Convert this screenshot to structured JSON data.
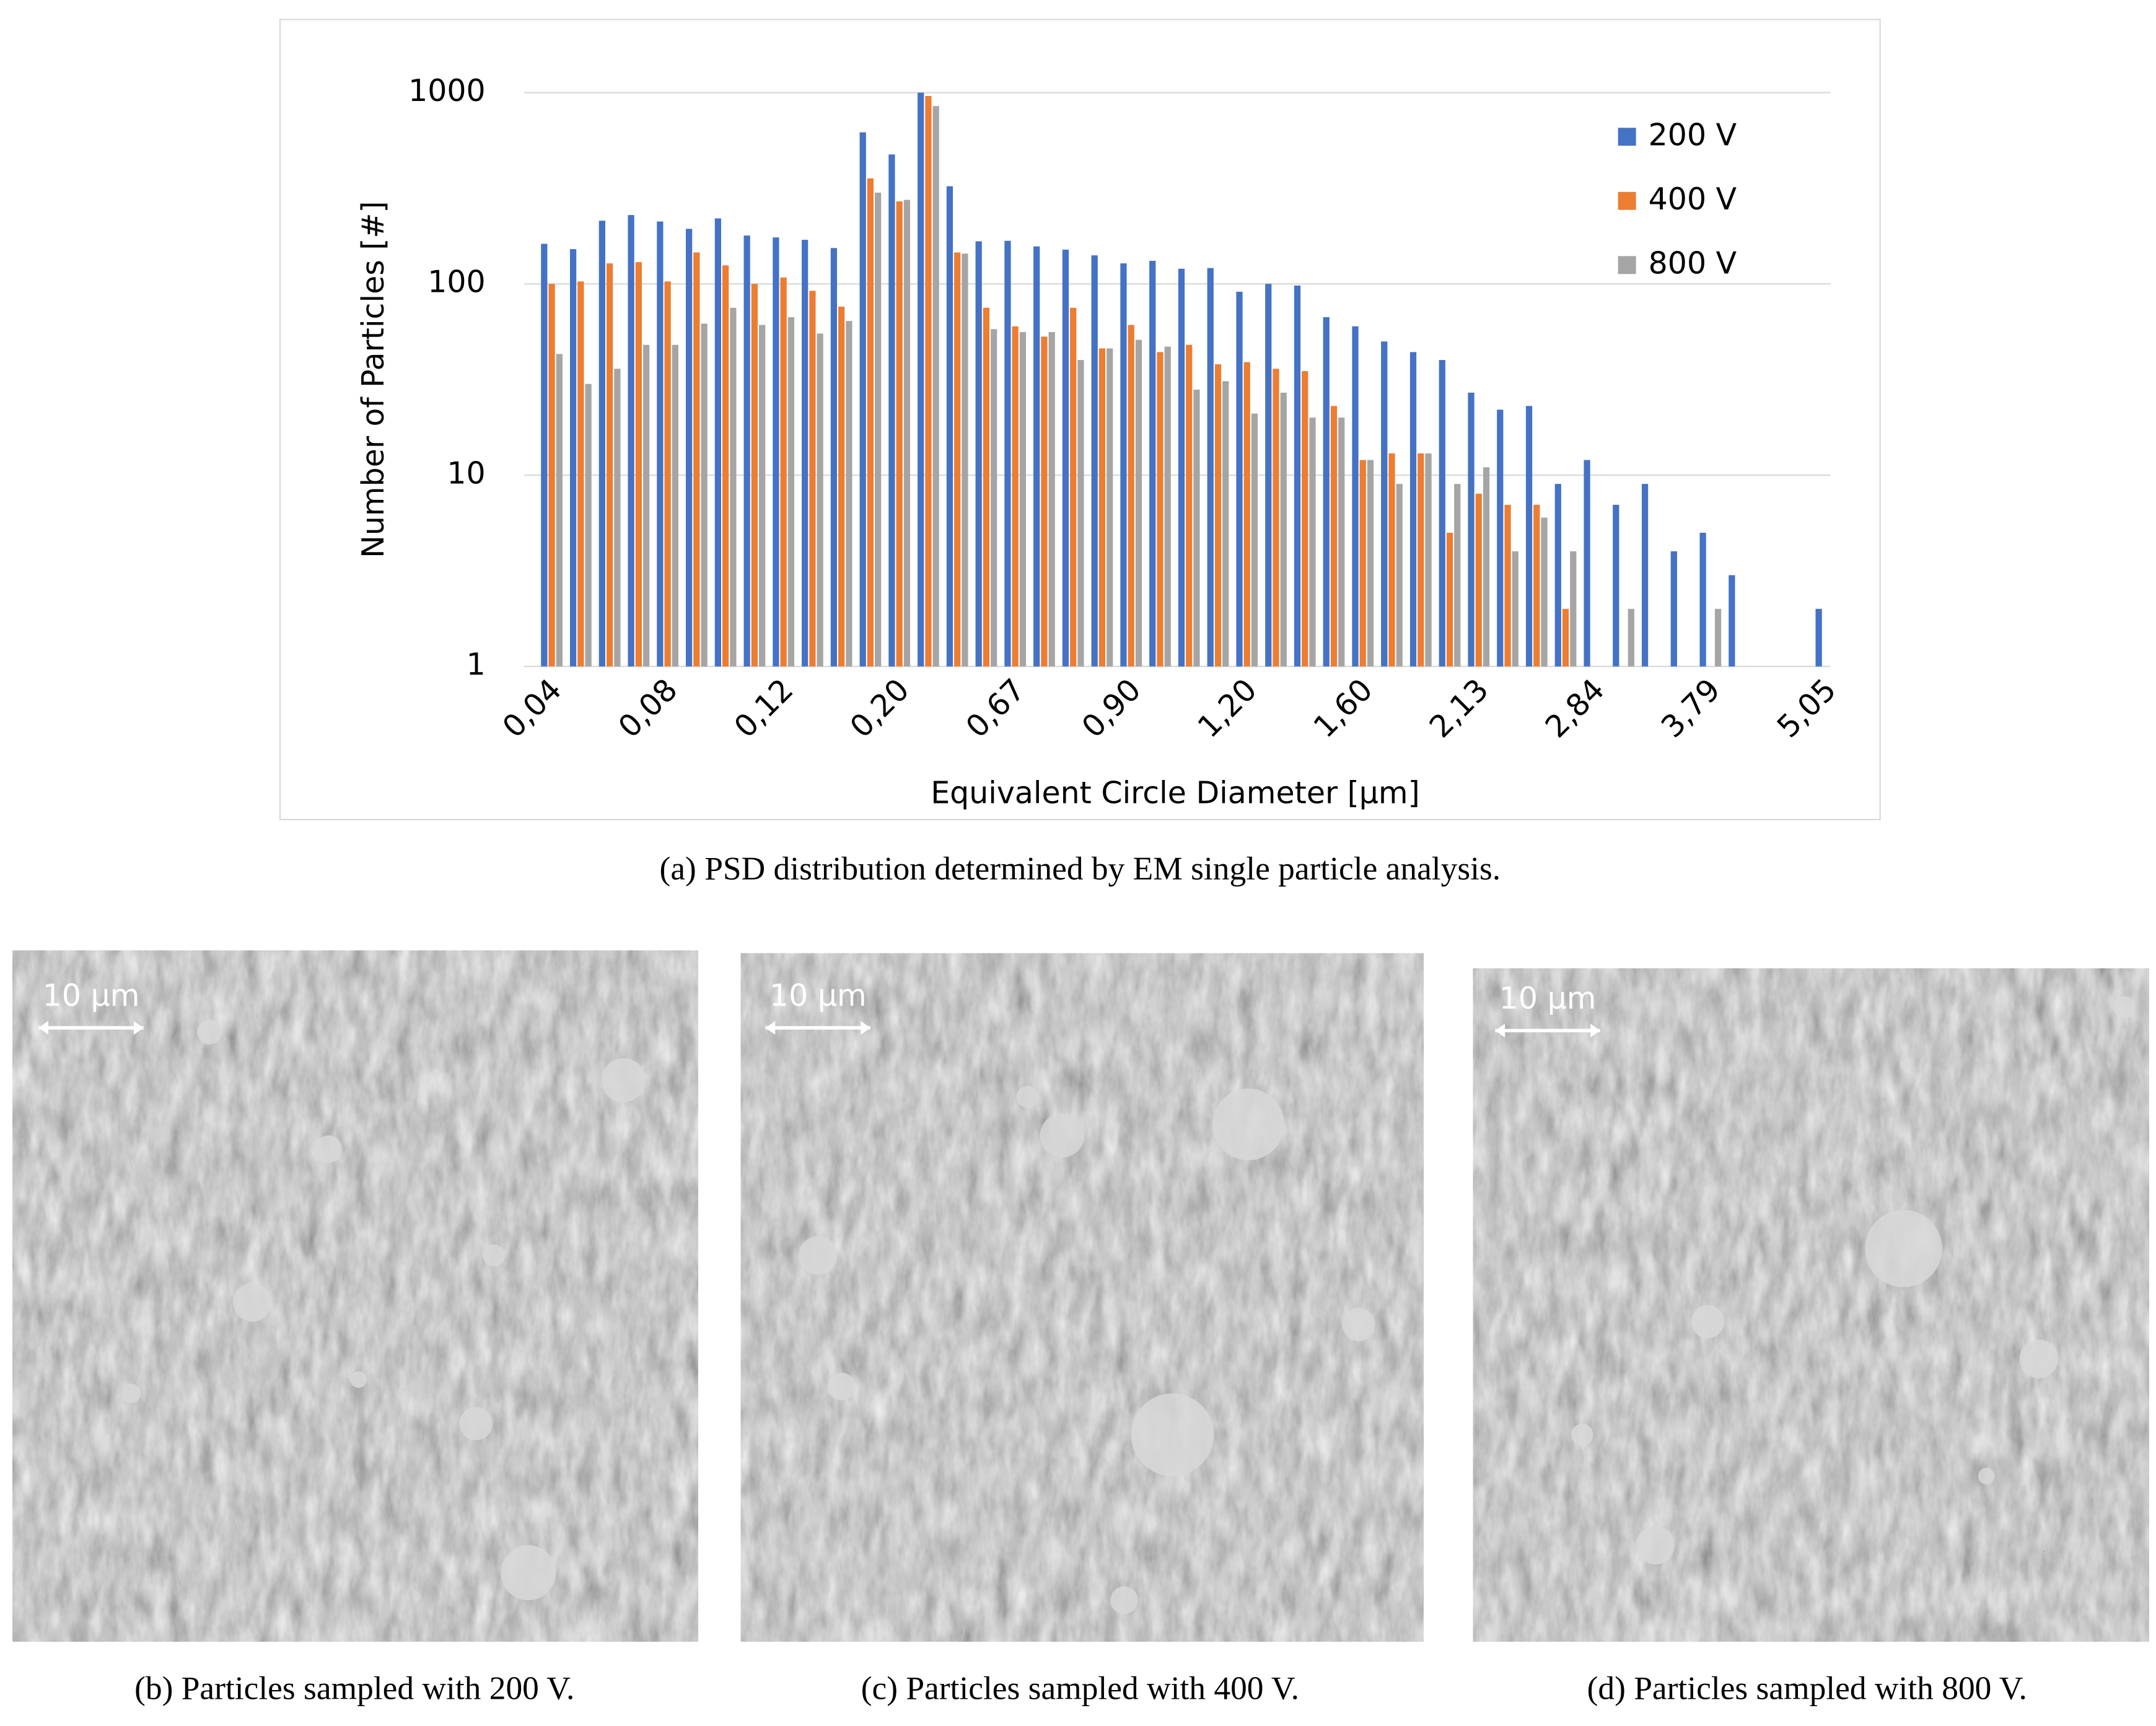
{
  "chart_data": {
    "type": "bar",
    "x_label": "Equivalent Circle Diameter [µm]",
    "y_label": "Number of Particles [#]",
    "categories": [
      "0,04",
      null,
      null,
      null,
      "0,08",
      null,
      null,
      null,
      "0,12",
      null,
      null,
      null,
      "0,20",
      null,
      null,
      null,
      "0,67",
      null,
      null,
      null,
      "0,90",
      null,
      null,
      null,
      "1,20",
      null,
      null,
      null,
      "1,60",
      null,
      null,
      null,
      "2,13",
      null,
      null,
      null,
      "2,84",
      null,
      null,
      null,
      "3,79",
      null,
      null,
      null,
      "5,05"
    ],
    "series": [
      {
        "name": "200 V",
        "color": "#4472c4",
        "values": [
          162,
          152,
          214,
          229,
          212,
          194,
          220,
          179,
          175,
          170,
          154,
          620,
          475,
          1000,
          324,
          167,
          168,
          157,
          151,
          141,
          128,
          132,
          120,
          121,
          91,
          100,
          98,
          67,
          60,
          50,
          44,
          40,
          27,
          22,
          23,
          9,
          12,
          7,
          9,
          4,
          5,
          3,
          null,
          null,
          2
        ]
      },
      {
        "name": "400 V",
        "color": "#ed7d31",
        "values": [
          100,
          103,
          128,
          130,
          103,
          146,
          125,
          100,
          108,
          92,
          76,
          356,
          270,
          960,
          146,
          75,
          60,
          53,
          75,
          46,
          61,
          44,
          48,
          38,
          39,
          36,
          35,
          23,
          12,
          13,
          13,
          5,
          8,
          7,
          7,
          2,
          null,
          null,
          null,
          null,
          null,
          null,
          null,
          null,
          null
        ]
      },
      {
        "name": "800 V",
        "color": "#a5a5a5",
        "values": [
          43,
          30,
          36,
          48,
          48,
          62,
          75,
          61,
          67,
          55,
          64,
          300,
          275,
          850,
          144,
          58,
          56,
          56,
          40,
          46,
          51,
          47,
          28,
          31,
          21,
          27,
          20,
          20,
          12,
          9,
          13,
          9,
          11,
          4,
          6,
          4,
          null,
          2,
          null,
          null,
          2,
          null,
          null,
          null,
          null
        ]
      }
    ],
    "ylim": [
      1,
      1000
    ],
    "yticks": [
      1,
      10,
      100,
      1000
    ],
    "log_y": true,
    "grid": true,
    "legend": "upper right"
  },
  "chart_caption": "(a)  PSD distribution determined by EM single particle analysis.",
  "images": [
    {
      "scale_label": "10 µm",
      "caption": "(b)  Particles sampled with 200 V."
    },
    {
      "scale_label": "10 µm",
      "caption": "(c)  Particles sampled with 400 V."
    },
    {
      "scale_label": "10 µm",
      "caption": "(d)  Particles sampled with 800 V."
    }
  ]
}
